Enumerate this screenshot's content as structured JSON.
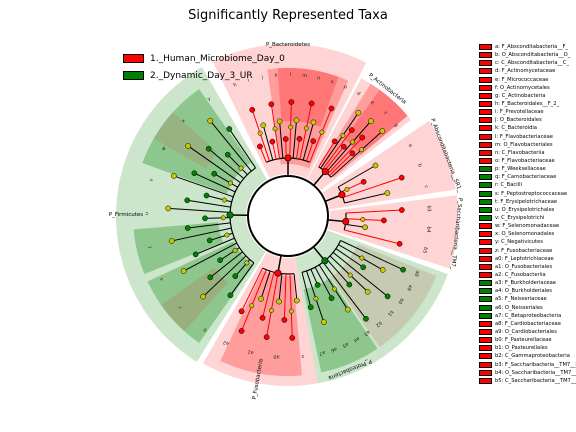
{
  "chart_data": {
    "type": "cladogram",
    "title": "Significantly Represented Taxa",
    "classes": [
      {
        "name": "1._Human_Microbiome_Day_0",
        "color": "#ff0000"
      },
      {
        "name": "2._Dynamic_Day_3_UR",
        "color": "#008000"
      }
    ],
    "background": {
      "nonsignificant_node": "#c8c800"
    },
    "taxa_legend": [
      {
        "label": "a: F_Absconditabacteria__F_",
        "class": 0
      },
      {
        "label": "b: O_Absconditabacteria__O_",
        "class": 0
      },
      {
        "label": "c: C_Absconditabacteria__C_",
        "class": 0
      },
      {
        "label": "d: F_Actinomycetaceae",
        "class": 0
      },
      {
        "label": "e: F_Micrococcaceae",
        "class": 0
      },
      {
        "label": "f: O_Actinomycetales",
        "class": 0
      },
      {
        "label": "g: C_Actinobacteria",
        "class": 0
      },
      {
        "label": "h: F_Bacteroidales__F_2_",
        "class": 0
      },
      {
        "label": "i: F_Prevotellaceae",
        "class": 0
      },
      {
        "label": "j: O_Bacteroidales",
        "class": 0
      },
      {
        "label": "k: C_Bacteroidia",
        "class": 0
      },
      {
        "label": "l: F_Flavobacteriaceae",
        "class": 0
      },
      {
        "label": "m: O_Flavobacteriales",
        "class": 0
      },
      {
        "label": "n: C_Flavobacteriia",
        "class": 0
      },
      {
        "label": "o: F_Flavobacteriaceae",
        "class": 0
      },
      {
        "label": "p: F_Weeksellaceae",
        "class": 1
      },
      {
        "label": "q: F_Carnobacteriaceae",
        "class": 1
      },
      {
        "label": "r: C_Bacilli",
        "class": 1
      },
      {
        "label": "s: F_Peptostreptococcaceae",
        "class": 1
      },
      {
        "label": "t: F_Erysipelotrichaceae",
        "class": 1
      },
      {
        "label": "u: O_Erysipelotrichales",
        "class": 1
      },
      {
        "label": "v: C_Erysipelotrichi",
        "class": 1
      },
      {
        "label": "w: F_Selenomonadaceae",
        "class": 0
      },
      {
        "label": "x: O_Selenomonadales",
        "class": 0
      },
      {
        "label": "y: C_Negativicutes",
        "class": 0
      },
      {
        "label": "z: F_Fusobacteriaceae",
        "class": 0
      },
      {
        "label": "a0: F_Leptotrichiaceae",
        "class": 0
      },
      {
        "label": "a1: O_Fusobacteriales",
        "class": 0
      },
      {
        "label": "a2: C_Fusobacteriia",
        "class": 0
      },
      {
        "label": "a3: F_Burkholderiaceae",
        "class": 1
      },
      {
        "label": "a4: O_Burkholderiales",
        "class": 1
      },
      {
        "label": "a5: F_Neisseriaceae",
        "class": 1
      },
      {
        "label": "a6: O_Neisseriales",
        "class": 1
      },
      {
        "label": "a7: C_Betaproteobacteria",
        "class": 1
      },
      {
        "label": "a8: F_Cardiobacteriaceae",
        "class": 0
      },
      {
        "label": "a9: O_Cardiobacteriales",
        "class": 0
      },
      {
        "label": "b0: F_Pasteurellaceae",
        "class": 0
      },
      {
        "label": "b1: O_Pasteurellales",
        "class": 0
      },
      {
        "label": "b2: C_Gammaproteobacteria",
        "class": 0
      },
      {
        "label": "b3: F_Saccharibacteria__TM7__F_",
        "class": 0
      },
      {
        "label": "b4: O_Saccharibacteria__TM7__O_",
        "class": 0
      },
      {
        "label": "b5: C_Saccharibacteria__TM7__C_",
        "class": 0
      }
    ],
    "phyla": [
      {
        "name": "P_Bacteroidetes",
        "class": 0
      },
      {
        "name": "P_Actinobacteria",
        "class": 0
      },
      {
        "name": "P_Absconditabacteria__SR1_",
        "class": 0
      },
      {
        "name": "P_Saccharibacteria__TM7_",
        "class": 0
      },
      {
        "name": "P_Proteobacteria",
        "class": 1
      },
      {
        "name": "P_Fusobacteria",
        "class": 0
      },
      {
        "name": "P_Firmicutes",
        "class": 1
      }
    ],
    "clade_markers": {
      "bacteroidetes": [
        "h",
        "i",
        "j",
        "k",
        "l",
        "m",
        "n",
        "o",
        "p"
      ],
      "actinobacteria": [
        "d",
        "e",
        "f",
        "g"
      ],
      "absconditabacteria": [
        "a",
        "b",
        "c"
      ],
      "saccharibacteria": [
        "b3",
        "b4",
        "b5"
      ],
      "proteobacteria_gamma": [
        "a8",
        "a9",
        "b0",
        "b1",
        "b2"
      ],
      "proteobacteria_beta": [
        "a3",
        "a4",
        "a5",
        "a6",
        "a7"
      ],
      "fusobacteria": [
        "z",
        "a0",
        "a1",
        "a2"
      ],
      "firmicutes": [
        "q",
        "r",
        "s",
        "t",
        "u",
        "v",
        "w",
        "x",
        "y"
      ]
    }
  }
}
